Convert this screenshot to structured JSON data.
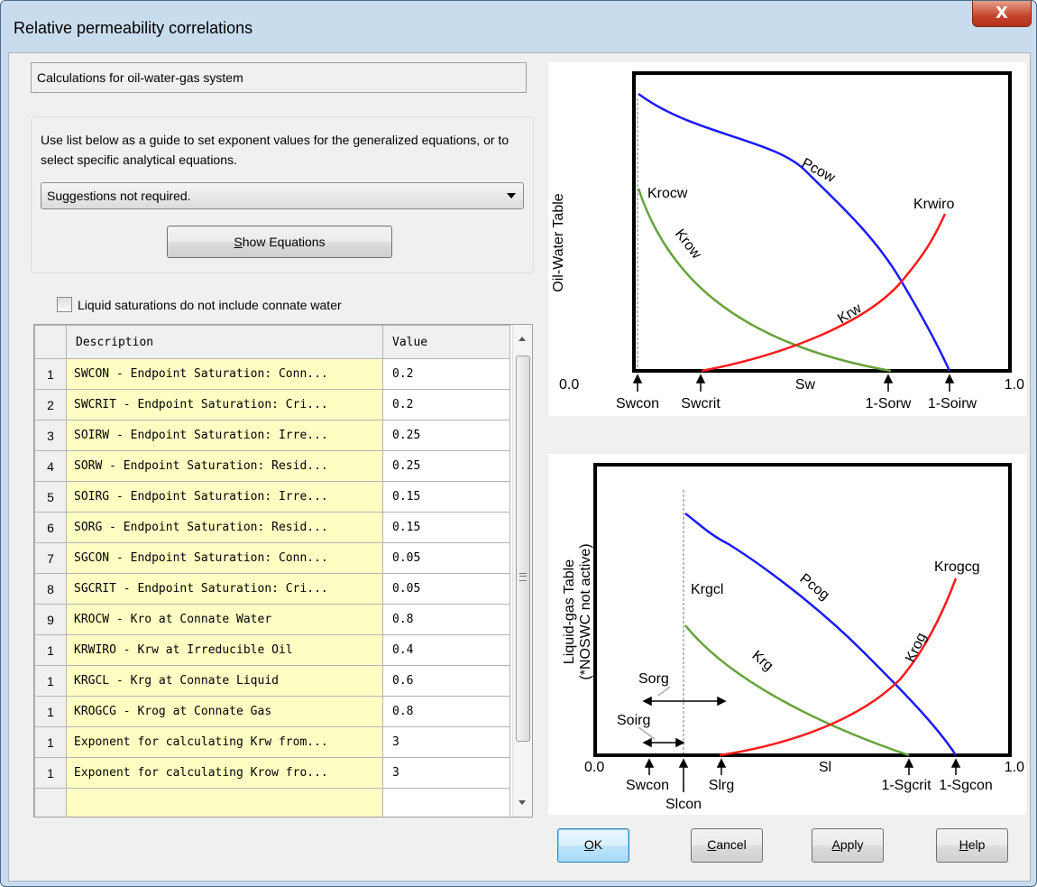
{
  "window": {
    "title": "Relative permeability correlations",
    "close_glyph": "X"
  },
  "header": {
    "text": "Calculations for oil-water-gas system"
  },
  "guide": {
    "text": "Use list below as a guide to set exponent values for the generalized equations, or to select specific analytical equations.",
    "dropdown_value": "Suggestions not required.",
    "show_button_label": "Show Equations"
  },
  "checkbox": {
    "label": "Liquid saturations do not include connate water",
    "checked": false
  },
  "table": {
    "columns": [
      "Description",
      "Value"
    ],
    "rows": [
      {
        "num": "1",
        "description": "SWCON - Endpoint Saturation: Conn...",
        "value": "0.2"
      },
      {
        "num": "2",
        "description": "SWCRIT - Endpoint Saturation: Cri...",
        "value": "0.2"
      },
      {
        "num": "3",
        "description": "SOIRW - Endpoint Saturation: Irre...",
        "value": "0.25"
      },
      {
        "num": "4",
        "description": "SORW - Endpoint Saturation: Resid...",
        "value": "0.25"
      },
      {
        "num": "5",
        "description": "SOIRG - Endpoint Saturation: Irre...",
        "value": "0.15"
      },
      {
        "num": "6",
        "description": "SORG - Endpoint Saturation: Resid...",
        "value": "0.15"
      },
      {
        "num": "7",
        "description": "SGCON - Endpoint Saturation: Conn...",
        "value": "0.05"
      },
      {
        "num": "8",
        "description": "SGCRIT - Endpoint Saturation: Cri...",
        "value": "0.05"
      },
      {
        "num": "9",
        "description": "KROCW - Kro at Connate Water",
        "value": "0.8"
      },
      {
        "num": "1",
        "description": "KRWIRO - Krw at Irreducible Oil",
        "value": "0.4"
      },
      {
        "num": "1",
        "description": "KRGCL - Krg at Connate Liquid",
        "value": "0.6"
      },
      {
        "num": "1",
        "description": "KROGCG - Krog at Connate Gas",
        "value": "0.8"
      },
      {
        "num": "1",
        "description": "Exponent for calculating Krw from...",
        "value": "3"
      },
      {
        "num": "1",
        "description": "Exponent for calculating Krow fro...",
        "value": "3"
      },
      {
        "num": "",
        "description": "",
        "value": ""
      }
    ]
  },
  "charts": {
    "oil_water": {
      "ylabel": "Oil-Water Table",
      "x_min": "0.0",
      "x_max": "1.0",
      "xlabel": "Sw",
      "markers": [
        "Swcon",
        "Swcrit",
        "1-Sorw",
        "1-Soirw"
      ],
      "curves": [
        "Krocw",
        "Krow",
        "Pcow",
        "Krwiro",
        "Krw"
      ]
    },
    "liquid_gas": {
      "ylabel_line1": "Liquid-gas Table",
      "ylabel_line2": "(*NOSWC not active)",
      "x_min": "0.0",
      "x_max": "1.0",
      "xlabel": "Sl",
      "markers": [
        "Swcon",
        "Slcon",
        "Slrg",
        "1-Sgcrit",
        "1-Sgcon"
      ],
      "curves": [
        "Krgcl",
        "Krg",
        "Pcog",
        "Krogcg",
        "Krog"
      ],
      "annotations": [
        "Sorg",
        "Soirg"
      ]
    },
    "colors": {
      "krow": "#66a33a",
      "pc": "#1a1aff",
      "krw": "#ff1a1a"
    }
  },
  "buttons": {
    "ok": "OK",
    "cancel": "Cancel",
    "apply": "Apply",
    "help": "Help"
  }
}
